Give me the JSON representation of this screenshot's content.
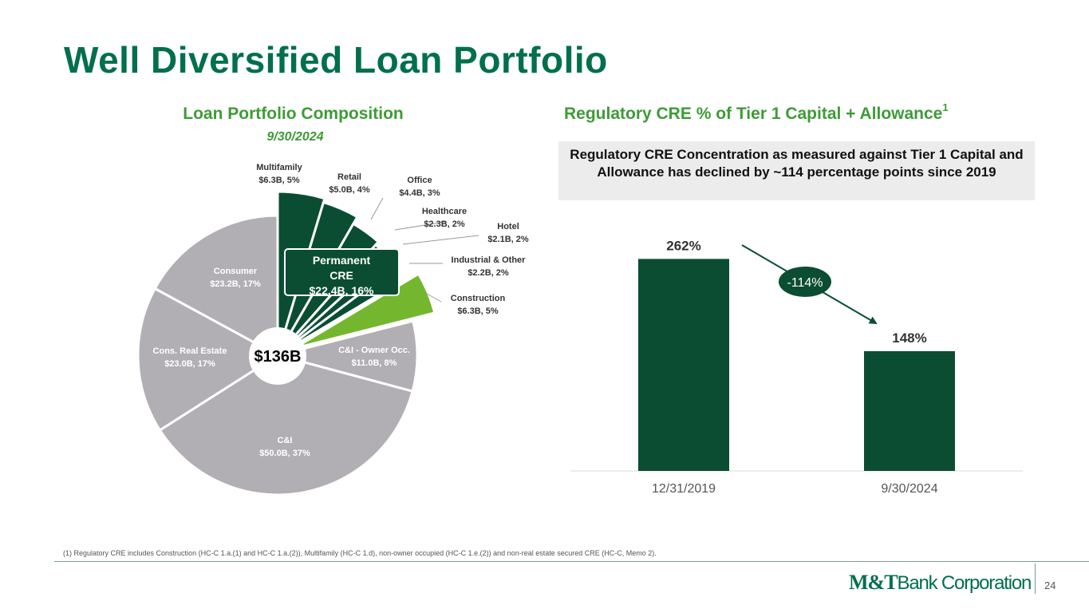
{
  "title": "Well Diversified Loan Portfolio",
  "footnote": "(1) Regulatory CRE includes Construction (HC-C 1.a.(1) and HC-C 1.a.(2)), Multifamily (HC-C 1.d), non-owner occupied (HC-C 1.e.(2)) and  non-real estate secured CRE (HC-C, Memo 2).",
  "page_number": "24",
  "logo": {
    "part1": "M&T",
    "part2": "Bank Corporation"
  },
  "colors": {
    "brand_green": "#00704a",
    "cre_dark": "#0a4d33",
    "construction": "#74b72e",
    "other_gray": "#b1afb4",
    "title_green": "#3e9b37"
  },
  "chart_data": [
    {
      "type": "pie",
      "title": "Loan Portfolio Composition",
      "subtitle": "9/30/2024",
      "center_label": "$136B",
      "group_label": [
        "Permanent",
        "CRE",
        "$22.4B, 16%"
      ],
      "slices": [
        {
          "name": "Multifamily",
          "label": "$6.3B, 5%",
          "value": 6.3,
          "group": "cre"
        },
        {
          "name": "Retail",
          "label": "$5.0B, 4%",
          "value": 5.0,
          "group": "cre"
        },
        {
          "name": "Office",
          "label": "$4.4B, 3%",
          "value": 4.4,
          "group": "cre"
        },
        {
          "name": "Healthcare",
          "label": "$2.3B, 2%",
          "value": 2.3,
          "group": "cre"
        },
        {
          "name": "Hotel",
          "label": "$2.1B, 2%",
          "value": 2.1,
          "group": "cre"
        },
        {
          "name": "Industrial & Other",
          "label": "$2.2B, 2%",
          "value": 2.2,
          "group": "cre"
        },
        {
          "name": "Construction",
          "label": "$6.3B, 5%",
          "value": 6.3,
          "group": "construction"
        },
        {
          "name": "C&I - Owner Occ.",
          "label": "$11.0B, 8%",
          "value": 11.0,
          "group": "other"
        },
        {
          "name": "C&I",
          "label": "$50.0B, 37%",
          "value": 50.0,
          "group": "other"
        },
        {
          "name": "Cons. Real Estate",
          "label": "$23.0B, 17%",
          "value": 23.0,
          "group": "other"
        },
        {
          "name": "Consumer",
          "label": "$23.2B, 17%",
          "value": 23.2,
          "group": "other"
        }
      ]
    },
    {
      "type": "bar",
      "title": "Regulatory CRE % of Tier 1 Capital + Allowance",
      "title_sup": "1",
      "callout": "Regulatory CRE Concentration as measured against Tier 1 Capital and Allowance has declined by ~114 percentage points since 2019",
      "categories": [
        "12/31/2019",
        "9/30/2024"
      ],
      "values": [
        262,
        148
      ],
      "value_labels": [
        "262%",
        "148%"
      ],
      "change_label": "-114%",
      "ylim": [
        0,
        290
      ]
    }
  ]
}
